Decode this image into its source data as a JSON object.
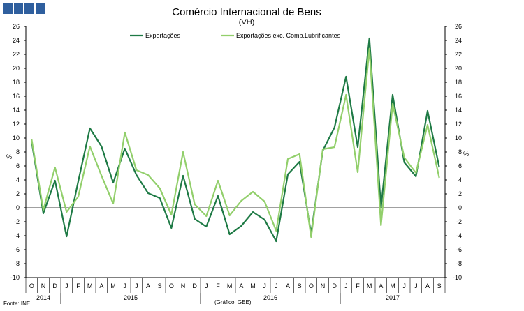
{
  "chart_data": {
    "type": "line",
    "title": "Comércio Internacional de Bens",
    "subtitle": "(VH)",
    "ylabel_left": "%",
    "ylabel_right": "%",
    "ylim": [
      -10,
      26
    ],
    "yticks": [
      -10,
      -8,
      -6,
      -4,
      -2,
      0,
      2,
      4,
      6,
      8,
      10,
      12,
      14,
      16,
      18,
      20,
      22,
      24,
      26
    ],
    "categories": [
      "O",
      "N",
      "D",
      "J",
      "F",
      "M",
      "A",
      "M",
      "J",
      "J",
      "A",
      "S",
      "O",
      "N",
      "D",
      "J",
      "F",
      "M",
      "A",
      "M",
      "J",
      "J",
      "A",
      "S",
      "O",
      "N",
      "D",
      "J",
      "F",
      "M",
      "A",
      "M",
      "J",
      "J",
      "A",
      "S"
    ],
    "years": [
      {
        "label": "2014",
        "start": 0,
        "end": 2
      },
      {
        "label": "2015",
        "start": 3,
        "end": 14
      },
      {
        "label": "2016",
        "start": 15,
        "end": 26
      },
      {
        "label": "2017",
        "start": 27,
        "end": 35
      }
    ],
    "series": [
      {
        "name": "Exportações",
        "color": "#1e7a45",
        "values": [
          9.5,
          -0.8,
          3.9,
          -4.1,
          3.8,
          11.4,
          8.8,
          3.6,
          8.5,
          4.7,
          2.1,
          1.4,
          -2.9,
          4.6,
          -1.6,
          -2.7,
          1.7,
          -3.8,
          -2.6,
          -0.6,
          -1.7,
          -4.8,
          4.8,
          6.6,
          -3.7,
          8.2,
          11.5,
          18.8,
          8.7,
          24.3,
          0.0,
          16.2,
          6.5,
          4.5,
          13.9,
          5.8
        ]
      },
      {
        "name": "Exportações exc. Comb.Lubrificantes",
        "color": "#92cf6b",
        "values": [
          9.8,
          -0.3,
          5.8,
          -0.6,
          1.6,
          8.8,
          4.6,
          0.6,
          10.8,
          5.4,
          4.7,
          2.8,
          -1.0,
          8.0,
          0.5,
          -1.2,
          3.9,
          -1.1,
          1.0,
          2.3,
          0.9,
          -3.3,
          7.0,
          7.7,
          -4.2,
          8.4,
          8.7,
          16.2,
          5.1,
          22.8,
          -2.5,
          14.9,
          7.2,
          5.0,
          11.9,
          4.3
        ]
      }
    ]
  },
  "footer": {
    "source": "Fonte: INE",
    "credit": "(Gráfico: GEE)"
  }
}
